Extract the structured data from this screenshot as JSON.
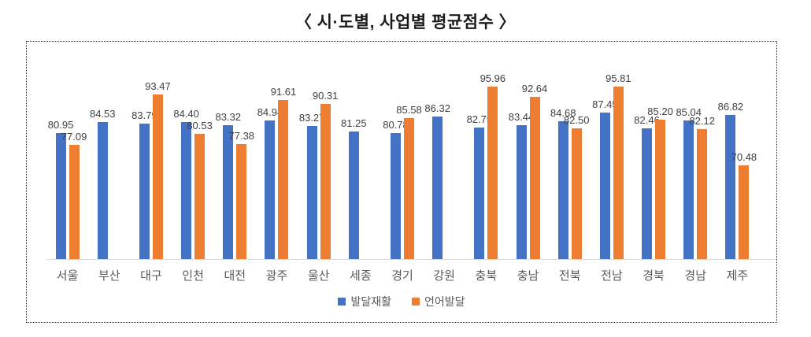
{
  "title": "〈 시·도별, 사업별 평균점수 〉",
  "chart_data": {
    "type": "bar",
    "title": "〈 시·도별, 사업별 평균점수 〉",
    "categories": [
      "서울",
      "부산",
      "대구",
      "인천",
      "대전",
      "광주",
      "울산",
      "세종",
      "경기",
      "강원",
      "충북",
      "충남",
      "전북",
      "전남",
      "경북",
      "경남",
      "제주"
    ],
    "series": [
      {
        "name": "발달재활",
        "color": "#4472C4",
        "values": [
          80.95,
          84.53,
          83.79,
          84.4,
          83.32,
          84.94,
          83.27,
          81.25,
          80.78,
          86.32,
          82.75,
          83.44,
          84.68,
          87.45,
          82.46,
          85.04,
          86.82
        ]
      },
      {
        "name": "언어발달",
        "color": "#ED7D31",
        "values": [
          77.09,
          null,
          93.47,
          80.53,
          77.38,
          91.61,
          90.31,
          null,
          85.58,
          null,
          95.96,
          92.64,
          82.5,
          95.81,
          85.2,
          82.12,
          70.48
        ]
      }
    ],
    "ylim": [
      40,
      100
    ],
    "grid": false,
    "legend_position": "bottom",
    "value_label_decimals": 2
  },
  "colors": {
    "background": "#ffffff",
    "border": "#333333",
    "axis_line": "#d9d9d9",
    "label_text": "#404040",
    "axis_text": "#595959",
    "title_text": "#1a1a1a"
  }
}
